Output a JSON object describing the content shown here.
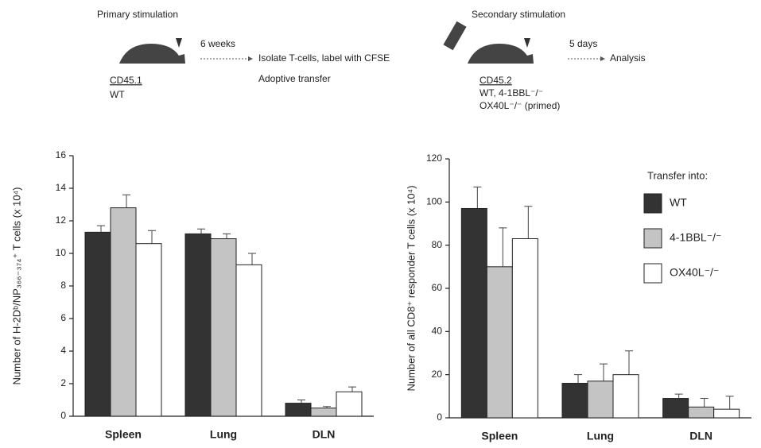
{
  "diagram": {
    "primary": {
      "title": "Primary stimulation",
      "strain": "CD45.1",
      "genotype": "WT"
    },
    "interval1": "6 weeks",
    "transfer": {
      "line1": "Isolate T-cells, label with CFSE",
      "line2": "Adoptive transfer"
    },
    "secondary": {
      "title": "Secondary stimulation",
      "strain": "CD45.2",
      "genotype1": "WT, 4-1BBL⁻/⁻",
      "genotype2": "OX40L⁻/⁻  (primed)"
    },
    "interval2": "5 days",
    "analysis": "Analysis"
  },
  "chart_data": [
    {
      "type": "bar",
      "y_label": "Number of H-2Dᵇ/NP₃₆₆₋₃₇₄⁺ T cells (x 10⁴)",
      "categories": [
        "Spleen",
        "Lung",
        "DLN"
      ],
      "series": [
        {
          "color": "#333333",
          "values": [
            11.3,
            11.2,
            0.8
          ],
          "errors": [
            0.4,
            0.3,
            0.2
          ]
        },
        {
          "color": "#c4c4c4",
          "values": [
            12.8,
            10.9,
            0.5
          ],
          "errors": [
            0.8,
            0.3,
            0.1
          ]
        },
        {
          "color": "#ffffff",
          "values": [
            10.6,
            9.3,
            1.5
          ],
          "errors": [
            0.8,
            0.7,
            0.3
          ]
        }
      ],
      "ylim": [
        0,
        16
      ],
      "yticks": [
        0,
        2,
        4,
        6,
        8,
        10,
        12,
        14,
        16
      ],
      "legend": "none"
    },
    {
      "type": "bar",
      "y_label": "Number of all CD8⁺ responder T cells (x 10⁴)",
      "categories": [
        "Spleen",
        "Lung",
        "DLN"
      ],
      "legend_title": "Transfer into:",
      "series": [
        {
          "name": "WT",
          "color": "#333333",
          "values": [
            97,
            16,
            9
          ],
          "errors": [
            10,
            4,
            2
          ]
        },
        {
          "name": "4-1BBL⁻/⁻",
          "color": "#c4c4c4",
          "values": [
            70,
            17,
            5
          ],
          "errors": [
            18,
            8,
            4
          ]
        },
        {
          "name": "OX40L⁻/⁻",
          "color": "#ffffff",
          "values": [
            83,
            20,
            4
          ],
          "errors": [
            15,
            11,
            6
          ]
        }
      ],
      "ylim": [
        0,
        120
      ],
      "yticks": [
        0,
        20,
        40,
        60,
        80,
        100,
        120
      ],
      "legend": "upper right"
    }
  ]
}
